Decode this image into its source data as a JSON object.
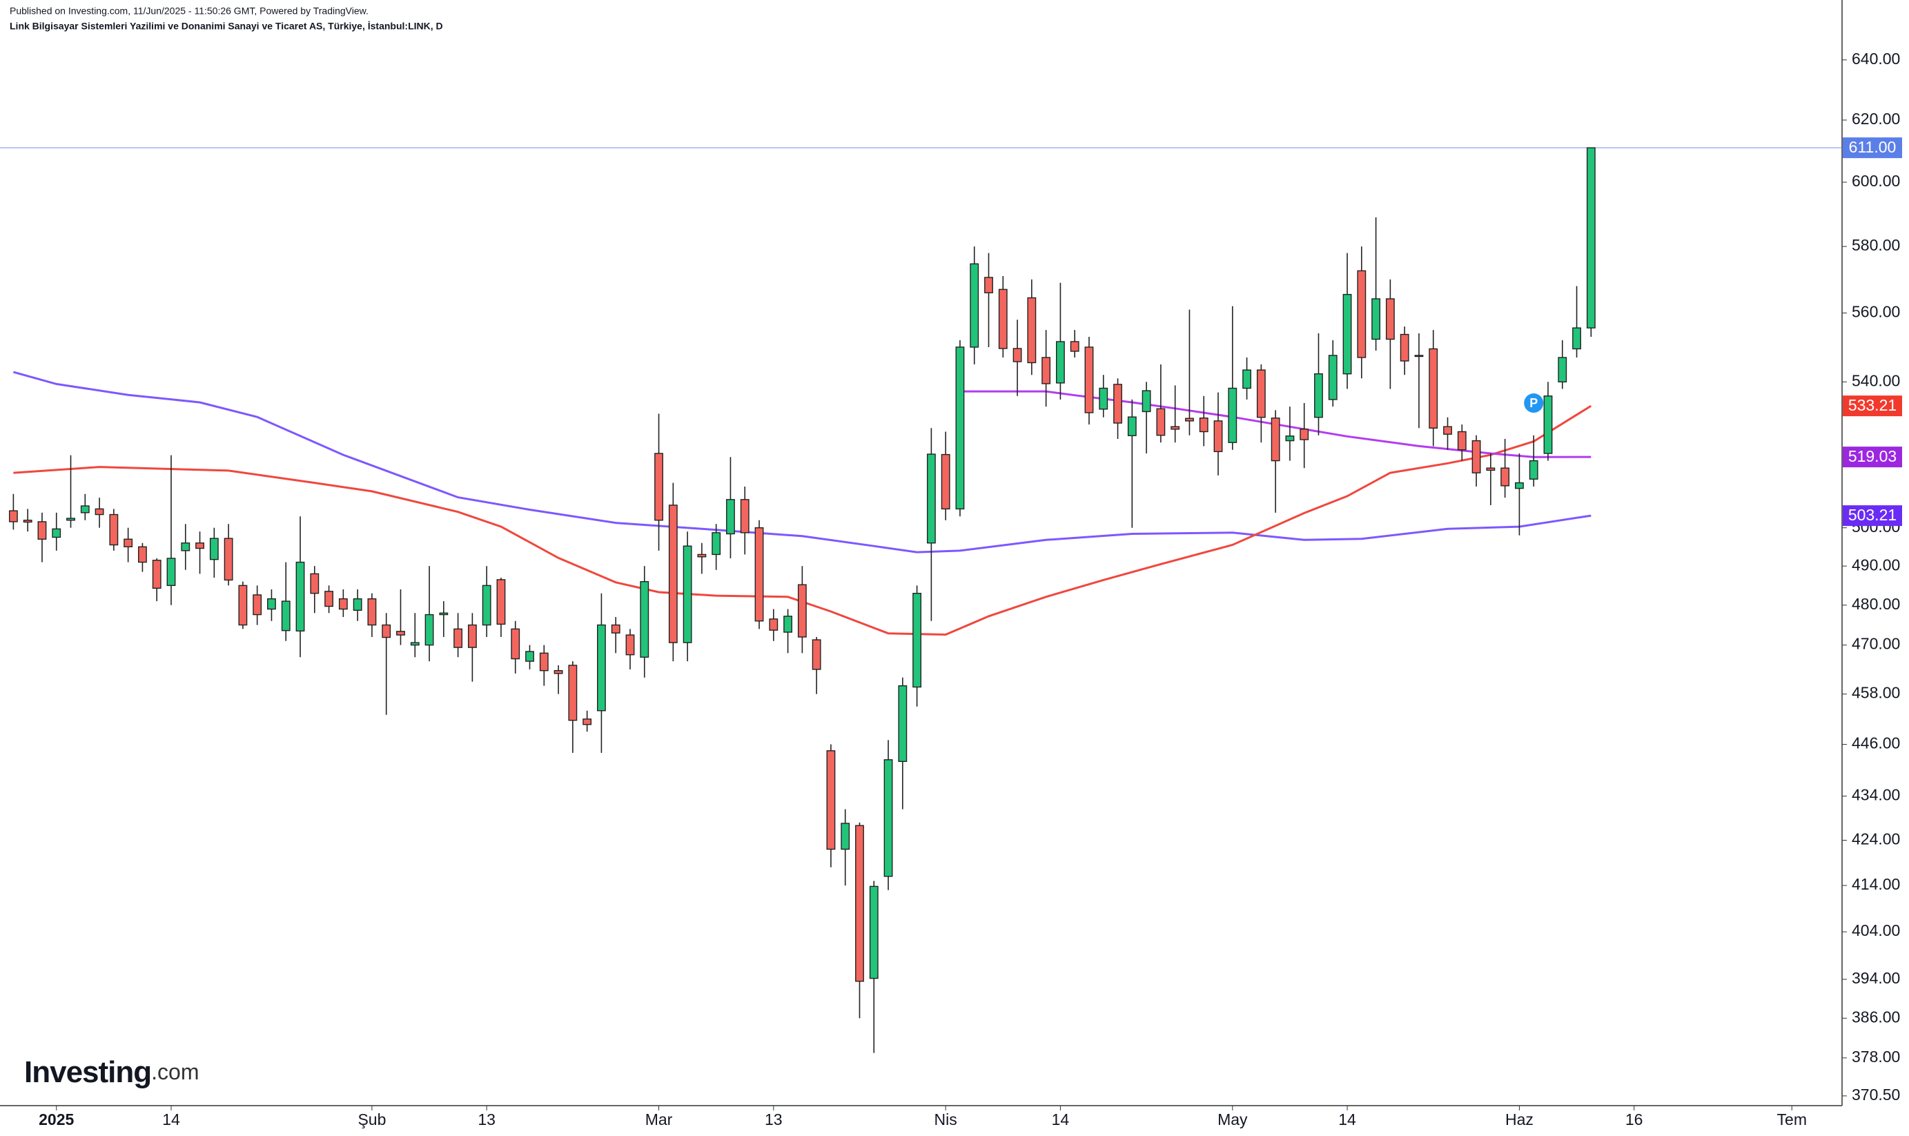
{
  "header": {
    "published": "Published on Investing.com, 11/Jun/2025 - 11:50:26 GMT, Powered by TradingView.",
    "symbol": "Link Bilgisayar Sistemleri Yazilimi ve Donanimi Sanayi ve Ticaret AS, Türkiye, İstanbul:LINK, D"
  },
  "logo": {
    "name": "Investing",
    "suffix": ".com"
  },
  "chart_data": {
    "type": "candlestick",
    "log_scale": true,
    "up_color": "#22c47a",
    "down_color": "#f2665e",
    "xlim": [
      -0.5,
      127.5
    ],
    "xticks": [
      {
        "value": 3,
        "label": "2025"
      },
      {
        "value": 11,
        "label": "14"
      },
      {
        "value": 25,
        "label": "Şub"
      },
      {
        "value": 33,
        "label": "13"
      },
      {
        "value": 45,
        "label": "Mar"
      },
      {
        "value": 53,
        "label": "13"
      },
      {
        "value": 65,
        "label": "Nis"
      },
      {
        "value": 73,
        "label": "14"
      },
      {
        "value": 85,
        "label": "May"
      },
      {
        "value": 93,
        "label": "14"
      },
      {
        "value": 105,
        "label": "Haz"
      },
      {
        "value": 113,
        "label": "16"
      },
      {
        "value": 124,
        "label": "Tem"
      }
    ],
    "ylim": [
      368.6,
      645.8
    ],
    "yticks": [
      {
        "value": 640,
        "label": "640.00"
      },
      {
        "value": 620,
        "label": "620.00"
      },
      {
        "value": 600,
        "label": "600.00"
      },
      {
        "value": 580,
        "label": "580.00"
      },
      {
        "value": 560,
        "label": "560.00"
      },
      {
        "value": 540,
        "label": "540.00"
      },
      {
        "value": 500,
        "label": "500.00"
      },
      {
        "value": 490,
        "label": "490.00"
      },
      {
        "value": 480,
        "label": "480.00"
      },
      {
        "value": 470,
        "label": "470.00"
      },
      {
        "value": 458,
        "label": "458.00"
      },
      {
        "value": 446,
        "label": "446.00"
      },
      {
        "value": 434,
        "label": "434.00"
      },
      {
        "value": 424,
        "label": "424.00"
      },
      {
        "value": 414,
        "label": "414.00"
      },
      {
        "value": 404,
        "label": "404.00"
      },
      {
        "value": 394,
        "label": "394.00"
      },
      {
        "value": 386,
        "label": "386.00"
      },
      {
        "value": 378,
        "label": "378.00"
      },
      {
        "value": 370.5,
        "label": "370.50"
      }
    ],
    "ohlc": [
      [
        504.5,
        509,
        499.5,
        501.6
      ],
      [
        502,
        505,
        499,
        501.5
      ],
      [
        501.6,
        504,
        491,
        497
      ],
      [
        497.5,
        504,
        494,
        499.7
      ],
      [
        502,
        519.5,
        500,
        502.5
      ],
      [
        504,
        509,
        502,
        505.8
      ],
      [
        505,
        508,
        500,
        503.5
      ],
      [
        503.5,
        505,
        494,
        495.5
      ],
      [
        497,
        500,
        491,
        495
      ],
      [
        495,
        496,
        488.5,
        491
      ],
      [
        491.5,
        492,
        481,
        484.3
      ],
      [
        485,
        519.5,
        480,
        492
      ],
      [
        494,
        501,
        489,
        496
      ],
      [
        496,
        499,
        488,
        494.6
      ],
      [
        491.7,
        500,
        487,
        497.2
      ],
      [
        497.2,
        501,
        485,
        486.4
      ],
      [
        485,
        486,
        474,
        475
      ],
      [
        482.6,
        485,
        475,
        477.6
      ],
      [
        479,
        484,
        476,
        481.6
      ],
      [
        473.6,
        491,
        471,
        481
      ],
      [
        473.5,
        503,
        467,
        491
      ],
      [
        488,
        490,
        478,
        483
      ],
      [
        483.5,
        485,
        478,
        479.7
      ],
      [
        481.6,
        484,
        477,
        479
      ],
      [
        478.7,
        484,
        476,
        481.6
      ],
      [
        481.6,
        483,
        472,
        475
      ],
      [
        475,
        478,
        453,
        471.9
      ],
      [
        473.4,
        484,
        470,
        472.5
      ],
      [
        470,
        478,
        467,
        470.6
      ],
      [
        470,
        490,
        466,
        477.6
      ],
      [
        477.6,
        481,
        472,
        478
      ],
      [
        474,
        478,
        467,
        469.4
      ],
      [
        475,
        478,
        461,
        469.4
      ],
      [
        475,
        490,
        472,
        485
      ],
      [
        486.5,
        487,
        472,
        475.2
      ],
      [
        474,
        476,
        463,
        466.6
      ],
      [
        466,
        470,
        464,
        468.4
      ],
      [
        468,
        470,
        460,
        463.7
      ],
      [
        463.7,
        465,
        458,
        463
      ],
      [
        465,
        466,
        444,
        451.7
      ],
      [
        452,
        454,
        449,
        450.7
      ],
      [
        454,
        483,
        444,
        475
      ],
      [
        475,
        477,
        468,
        473
      ],
      [
        472.5,
        474,
        464,
        467.6
      ],
      [
        467,
        490,
        462,
        486
      ],
      [
        520,
        531,
        494,
        502
      ],
      [
        506,
        512,
        466,
        470.6
      ],
      [
        470.6,
        499,
        466,
        495.2
      ],
      [
        493,
        496,
        488,
        492.4
      ],
      [
        493,
        501,
        489,
        498.7
      ],
      [
        498.4,
        519,
        492,
        507.5
      ],
      [
        507.5,
        511,
        493,
        498.7
      ],
      [
        500,
        502,
        474,
        476
      ],
      [
        476.5,
        479,
        471,
        473.7
      ],
      [
        473.2,
        479,
        468,
        477.2
      ],
      [
        485.2,
        490,
        468,
        472
      ],
      [
        471.3,
        472,
        458,
        464
      ],
      [
        444.5,
        446,
        418,
        422
      ],
      [
        422,
        431,
        414,
        427.8
      ],
      [
        427.3,
        428,
        386,
        393.6
      ],
      [
        394.2,
        415,
        379,
        413.8
      ],
      [
        416,
        447,
        413,
        442.4
      ],
      [
        442,
        462,
        431,
        460
      ],
      [
        459.7,
        485,
        455,
        483
      ],
      [
        496,
        527,
        476,
        519.8
      ],
      [
        519.7,
        526,
        502,
        505
      ],
      [
        505,
        552,
        503,
        550
      ],
      [
        550,
        580,
        545,
        574.7
      ],
      [
        570.6,
        578,
        550,
        566
      ],
      [
        567,
        571,
        547,
        549.6
      ],
      [
        549.6,
        558,
        536,
        545.8
      ],
      [
        564.5,
        570,
        542,
        545.5
      ],
      [
        547,
        555,
        533,
        539.5
      ],
      [
        539.7,
        569,
        535,
        551.6
      ],
      [
        551.6,
        555,
        547,
        548.8
      ],
      [
        550,
        553,
        528,
        531.3
      ],
      [
        532.3,
        542,
        530,
        538.2
      ],
      [
        539.3,
        541,
        524,
        528.4
      ],
      [
        524.9,
        535,
        500,
        530.1
      ],
      [
        531.6,
        540,
        520,
        537.5
      ],
      [
        532.4,
        545,
        523,
        525
      ],
      [
        527.4,
        539,
        523,
        526.7
      ],
      [
        529.7,
        561,
        525,
        529
      ],
      [
        529.8,
        536,
        522,
        526
      ],
      [
        529,
        537,
        514,
        520.5
      ],
      [
        523,
        562,
        521,
        538.2
      ],
      [
        538.2,
        547,
        535,
        543.4
      ],
      [
        543.4,
        545,
        523,
        530
      ],
      [
        529.8,
        532,
        504,
        518
      ],
      [
        523.5,
        533,
        518,
        524.8
      ],
      [
        526.7,
        534,
        516,
        523.8
      ],
      [
        530,
        554,
        525,
        542.3
      ],
      [
        535,
        552,
        533,
        547.6
      ],
      [
        542.3,
        578,
        538,
        565.5
      ],
      [
        572.6,
        580,
        541,
        547
      ],
      [
        552.3,
        589,
        549,
        564.2
      ],
      [
        564.2,
        570,
        538,
        552.3
      ],
      [
        553.7,
        556,
        542,
        546
      ],
      [
        547.6,
        554,
        527,
        547.3
      ],
      [
        549.5,
        555,
        522,
        527
      ],
      [
        527.4,
        530,
        521,
        525.3
      ],
      [
        526,
        528,
        518,
        521
      ],
      [
        523.5,
        525,
        511,
        514.7
      ],
      [
        516,
        520,
        506,
        515.4
      ],
      [
        516,
        524,
        508,
        511.2
      ],
      [
        510.5,
        520,
        498,
        512
      ],
      [
        513,
        525,
        511,
        518
      ],
      [
        520,
        540,
        518,
        536
      ],
      [
        540,
        552,
        538,
        547
      ],
      [
        549.5,
        568,
        547,
        555.6
      ],
      [
        555.6,
        611,
        553,
        611
      ]
    ],
    "lines": [
      {
        "color": "#7e57ff",
        "x": [
          0,
          3,
          8,
          13,
          17,
          23,
          31,
          36,
          42,
          48,
          55,
          60,
          63,
          66,
          72,
          78,
          85,
          90,
          94,
          100,
          105,
          110
        ],
        "values": [
          542.8,
          539.4,
          536.3,
          534.2,
          530.1,
          519.6,
          508.1,
          504.8,
          501.3,
          499.7,
          497.8,
          495.2,
          493.6,
          494,
          496.8,
          498.4,
          498.7,
          496.8,
          497.1,
          499.7,
          500.3,
          503.21
        ],
        "last_label": {
          "value": 503.21,
          "label": "503.21",
          "color": "#6a2cf5"
        }
      },
      {
        "color": "#f0473d",
        "x": [
          0,
          6,
          15,
          21,
          25,
          31,
          34,
          38,
          42,
          45,
          49,
          54,
          57,
          61,
          65,
          68,
          72,
          76,
          80,
          85,
          90,
          93,
          96,
          100,
          103,
          106,
          110
        ],
        "values": [
          514.7,
          516.3,
          515.3,
          512,
          509.7,
          504.2,
          500.3,
          492.1,
          485.8,
          483.3,
          482.4,
          482.1,
          478.4,
          472.9,
          472.6,
          477.2,
          482.1,
          486.4,
          490.5,
          495.5,
          503.9,
          508.4,
          514.7,
          517.3,
          519.6,
          523.3,
          533.21
        ],
        "last_label": {
          "value": 533.21,
          "label": "533.21",
          "color": "#f23a2c"
        }
      },
      {
        "color": "#b23cf0",
        "x": [
          66,
          72,
          74,
          78,
          81,
          85,
          90,
          93,
          98,
          103,
          106,
          110
        ],
        "values": [
          537.3,
          537.3,
          536.2,
          534.2,
          532.5,
          530.1,
          526.7,
          524.7,
          522,
          520,
          519,
          519.03
        ],
        "last_label": {
          "value": 519.03,
          "label": "519.03",
          "color": "#9c27e0"
        }
      }
    ],
    "price_line": {
      "value": 611,
      "label": "611.00",
      "color": "#5b7fe8"
    },
    "markers": [
      {
        "label": "P",
        "x": 106,
        "value": 534,
        "color": "#2196f3"
      }
    ]
  }
}
